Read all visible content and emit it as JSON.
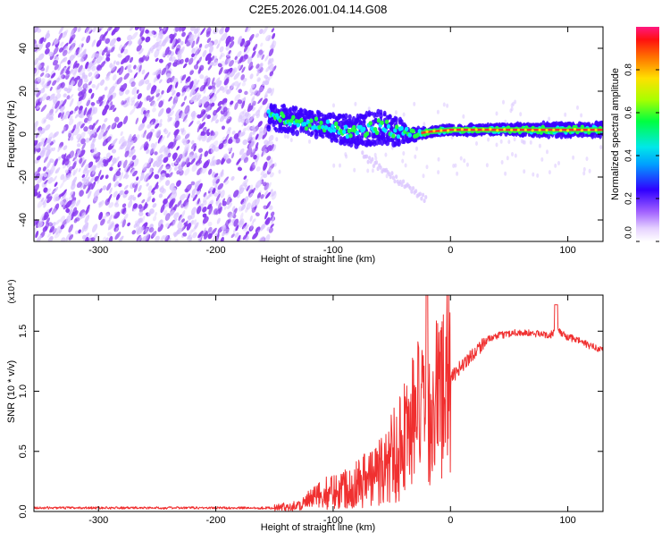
{
  "title": "C2E5.2026.001.04.14.G08",
  "colors": {
    "snr_line": "#f03030",
    "axis": "#000000",
    "speckle": "#8a3cf0",
    "speckle_light": "#d8c2ff",
    "trace_core": "#ff3030",
    "trace_mid": "#00e5ff",
    "trace_outer": "#3a00ff",
    "trace_green": "#22ff44"
  },
  "chart_data": [
    {
      "type": "heatmap",
      "name": "spectrogram",
      "xlabel": "Height of straight line (km)",
      "ylabel": "Frequency (Hz)",
      "xlim": [
        -355,
        130
      ],
      "ylim": [
        -50,
        50
      ],
      "xticks": [
        -300,
        -200,
        -100,
        0,
        100
      ],
      "xtick_labels": [
        "-300",
        "-200",
        "-100",
        "0",
        "100"
      ],
      "yticks": [
        -40,
        -20,
        0,
        20,
        40
      ],
      "ytick_labels": [
        "-40",
        "-20",
        "0",
        "20",
        "40"
      ],
      "noise_region_x": [
        -355,
        -150
      ],
      "trace": {
        "x": [
          -155,
          -140,
          -120,
          -100,
          -80,
          -60,
          -50,
          -40,
          -30,
          -20,
          0,
          40,
          80,
          100,
          130
        ],
        "center": [
          8,
          7,
          5,
          3,
          1,
          4,
          2,
          1,
          0,
          1,
          2,
          2,
          2,
          2,
          2
        ],
        "spread": [
          6,
          6,
          6,
          6,
          7,
          8,
          7,
          5,
          3,
          2,
          2,
          2,
          3,
          3,
          3
        ]
      },
      "colorbar": {
        "label": "Normalized spectral amplitude",
        "ticks": [
          0.0,
          0.2,
          0.4,
          0.6,
          0.8
        ],
        "tick_labels": [
          "0.0",
          "0.2",
          "0.4",
          "0.6",
          "0.8"
        ],
        "range": [
          0,
          1
        ]
      }
    },
    {
      "type": "line",
      "name": "snr",
      "xlabel": "Height of straight line (km)",
      "ylabel": "SNR (10 * v/v)",
      "scale_label": "(x10⁴)",
      "xlim": [
        -355,
        130
      ],
      "ylim": [
        0,
        1.8
      ],
      "xticks": [
        -300,
        -200,
        -100,
        0,
        100
      ],
      "xtick_labels": [
        "-300",
        "-200",
        "-100",
        "0",
        "100"
      ],
      "yticks": [
        0.0,
        0.5,
        1.0,
        1.5
      ],
      "ytick_labels": [
        "0.0",
        "0.5",
        "1.0",
        "1.5"
      ],
      "series": [
        {
          "name": "SNR",
          "x": [
            -355,
            -300,
            -250,
            -200,
            -150,
            -130,
            -110,
            -90,
            -70,
            -55,
            -45,
            -35,
            -28,
            -20,
            -12,
            -5,
            0,
            10,
            20,
            30,
            40,
            55,
            70,
            85,
            92,
            100,
            110,
            118,
            125,
            130
          ],
          "y": [
            0.03,
            0.03,
            0.03,
            0.03,
            0.03,
            0.05,
            0.14,
            0.2,
            0.28,
            0.36,
            0.55,
            0.7,
            0.85,
            0.75,
            0.95,
            1.02,
            1.1,
            1.22,
            1.32,
            1.42,
            1.46,
            1.49,
            1.48,
            1.47,
            1.5,
            1.45,
            1.42,
            1.38,
            1.36,
            1.35
          ]
        }
      ]
    }
  ]
}
